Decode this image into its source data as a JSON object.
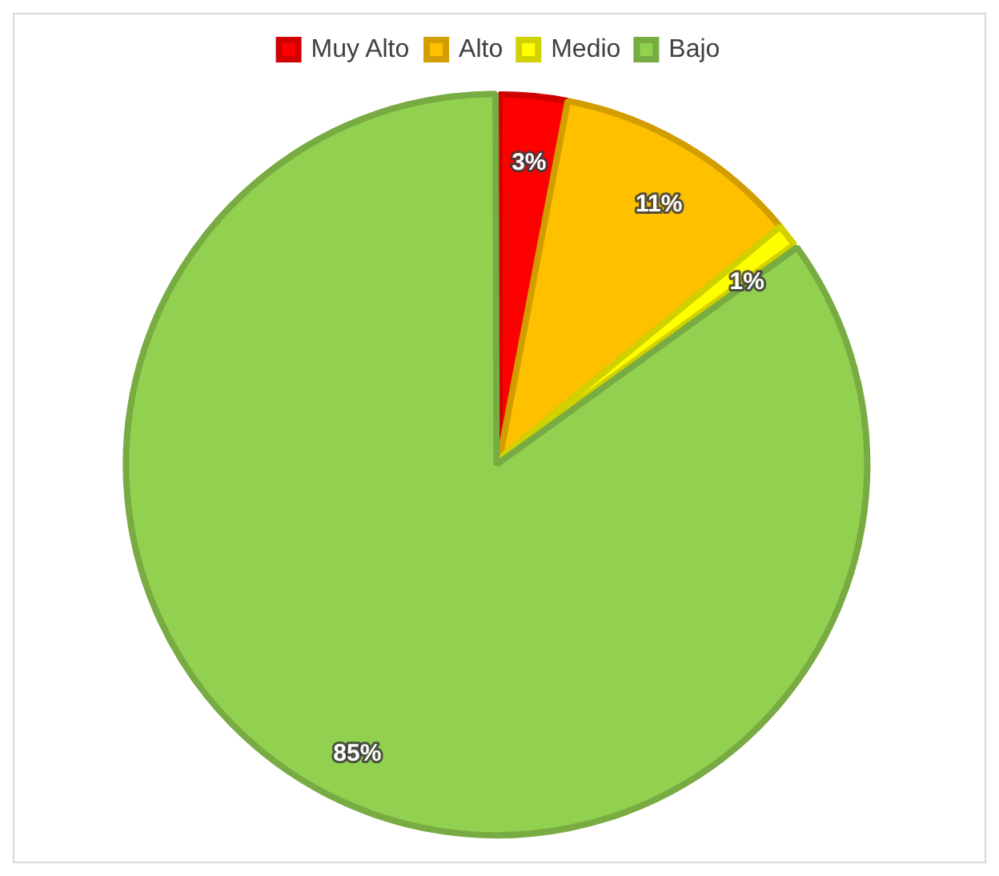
{
  "chart_data": {
    "type": "pie",
    "categories": [
      "Muy Alto",
      "Alto",
      "Medio",
      "Bajo"
    ],
    "values": [
      3,
      11,
      1,
      85
    ],
    "colors": [
      "#ff0000",
      "#ffc000",
      "#ffff00",
      "#92d050"
    ],
    "value_labels": [
      "3%",
      "11%",
      "1%",
      "85%"
    ],
    "legend": "top"
  }
}
